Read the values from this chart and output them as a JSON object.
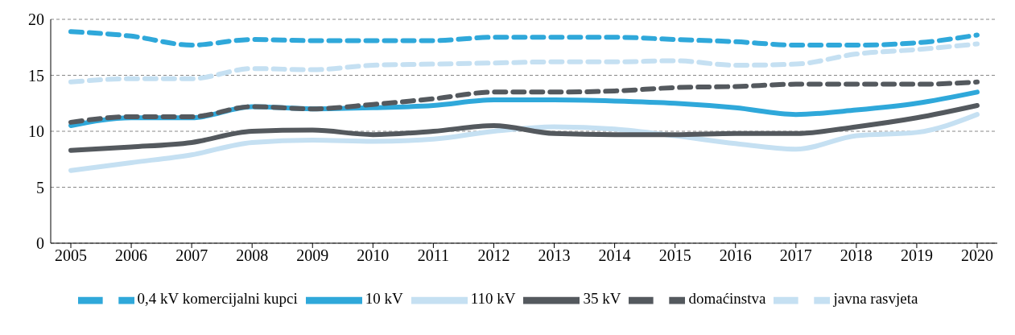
{
  "chart_data": {
    "type": "line",
    "categories": [
      "2005",
      "2006",
      "2007",
      "2008",
      "2009",
      "2010",
      "2011",
      "2012",
      "2013",
      "2014",
      "2015",
      "2016",
      "2017",
      "2018",
      "2019",
      "2020"
    ],
    "series": [
      {
        "name": "110 kV",
        "color": "#c5e0f2",
        "line_style": "solid",
        "values": [
          6.5,
          7.2,
          7.9,
          9.0,
          9.2,
          9.1,
          9.3,
          10.0,
          10.4,
          10.2,
          9.6,
          8.9,
          8.4,
          9.6,
          9.9,
          11.5
        ]
      },
      {
        "name": "35 kV",
        "color": "#54595e",
        "line_style": "solid",
        "values": [
          8.3,
          8.6,
          9.0,
          10.0,
          10.1,
          9.7,
          10.0,
          10.5,
          9.8,
          9.7,
          9.7,
          9.8,
          9.8,
          10.4,
          11.2,
          12.3
        ]
      },
      {
        "name": "10 kV",
        "color": "#2fa8da",
        "line_style": "solid",
        "values": [
          10.5,
          11.2,
          11.2,
          12.2,
          12.0,
          12.1,
          12.3,
          12.8,
          12.8,
          12.7,
          12.5,
          12.1,
          11.5,
          11.9,
          12.5,
          13.5
        ]
      },
      {
        "name": "0,4 kV komercijalni kupci",
        "color": "#2fa8da",
        "line_style": "dashed",
        "values": [
          18.9,
          18.5,
          17.7,
          18.2,
          18.1,
          18.1,
          18.1,
          18.4,
          18.4,
          18.4,
          18.2,
          18.0,
          17.7,
          17.7,
          17.9,
          18.6
        ]
      },
      {
        "name": "domaćinstva",
        "color": "#54595e",
        "line_style": "dashed",
        "values": [
          10.8,
          11.3,
          11.3,
          12.2,
          12.0,
          12.4,
          12.9,
          13.5,
          13.5,
          13.6,
          13.9,
          14.0,
          14.2,
          14.2,
          14.2,
          14.4
        ]
      },
      {
        "name": "javna rasvjeta",
        "color": "#c5e0f2",
        "line_style": "dashed",
        "values": [
          14.4,
          14.7,
          14.7,
          15.6,
          15.5,
          15.9,
          16.0,
          16.1,
          16.2,
          16.2,
          16.3,
          15.9,
          16.0,
          16.9,
          17.3,
          17.8
        ]
      }
    ],
    "ylim": [
      0,
      20
    ],
    "yticks": [
      0,
      5,
      10,
      15,
      20
    ],
    "grid": "y",
    "legend": "bottom",
    "marker": "none"
  }
}
